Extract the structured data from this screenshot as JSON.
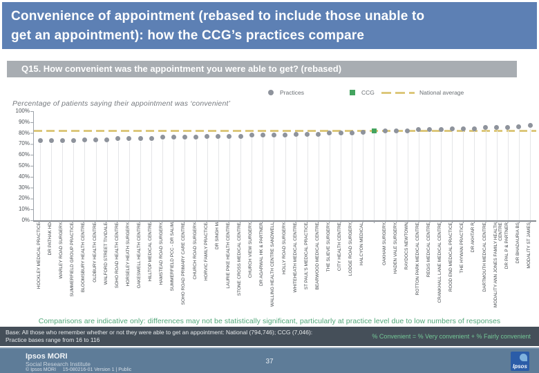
{
  "slide": {
    "title": "Convenience of appointment (rebased to include those unable to get an appointment): how the CCG’s practices compare",
    "question": "Q15. How convenient was the appointment you were able to get? (rebased)",
    "page_number": "37"
  },
  "legend": {
    "practices": "Practices",
    "ccg": "CCG",
    "national": "National average"
  },
  "chart_data": {
    "type": "scatter",
    "title": "Percentage of patients saying their appointment was ‘convenient’",
    "ylabel": "",
    "ylim": [
      0,
      100
    ],
    "y_ticks": [
      "100%",
      "90%",
      "80%",
      "70%",
      "60%",
      "50%",
      "40%",
      "30%",
      "20%",
      "10%",
      "0%"
    ],
    "grid": "column drop lines",
    "legend_position": "top-right",
    "national_average": 82,
    "ccg": {
      "label": "CCG",
      "value": 82,
      "position_index": 30
    },
    "practices": [
      {
        "name": "HOCKLEY MEDICAL PRACTICE",
        "value": 73
      },
      {
        "name": "DR PATHAK HD",
        "value": 73
      },
      {
        "name": "WARLEY ROAD SURGERY",
        "value": 73
      },
      {
        "name": "SUMMERFIELD GROUP PRACTICE",
        "value": 73
      },
      {
        "name": "BLOOMSBURY HEALTH CENTRE",
        "value": 74
      },
      {
        "name": "OLDBURY HEALTH CENTRE",
        "value": 74
      },
      {
        "name": "WALFORD STREET TIVIDALE",
        "value": 74
      },
      {
        "name": "SOHO ROAD HEALTH CENTRE",
        "value": 75
      },
      {
        "name": "HORSELEY HEATH SURGERY",
        "value": 75
      },
      {
        "name": "OAKESWELL HEALTH CENTRE",
        "value": 75
      },
      {
        "name": "HILLTOP MEDICAL CENTRE",
        "value": 75
      },
      {
        "name": "HAMSTEAD ROAD SURGERY",
        "value": 76
      },
      {
        "name": "SUMMERFIELD PCC - DR SALIM",
        "value": 76
      },
      {
        "name": "SOHO ROAD PRIMARY CARE CENTRE",
        "value": 76
      },
      {
        "name": "CHURCH ROAD SURGERY",
        "value": 76
      },
      {
        "name": "HORVIC FAMILY PRACTICE",
        "value": 77
      },
      {
        "name": "DR SINGH M",
        "value": 77
      },
      {
        "name": "LAURIE PIKE HEALTH CENTRE",
        "value": 77
      },
      {
        "name": "STONE CROSS MEDICAL CENTRE",
        "value": 77
      },
      {
        "name": "CHURCH VIEW SURGERY",
        "value": 78
      },
      {
        "name": "DR AGARWAL HK & PARTNER",
        "value": 78
      },
      {
        "name": "WALLING HEALTH CENTRE SANDWELL",
        "value": 78
      },
      {
        "name": "HOLLY ROAD SURGERY",
        "value": 78
      },
      {
        "name": "WHITEHEATH MEDICAL CENTRE",
        "value": 79
      },
      {
        "name": "ST PAUL'S MEDICAL PRACTICE",
        "value": 79
      },
      {
        "name": "BEARWOOD MEDICAL CENTRE",
        "value": 79
      },
      {
        "name": "THE SLIEVE SURGERY",
        "value": 80
      },
      {
        "name": "CITY HEALTH CENTRE",
        "value": 80
      },
      {
        "name": "LODGE ROAD SURGERY",
        "value": 80
      },
      {
        "name": "HALCYON MEDICAL",
        "value": 81
      },
      {
        "name": "OAKHAM SURGERY",
        "value": 82
      },
      {
        "name": "HADEN VALE SURGERY",
        "value": 82
      },
      {
        "name": "RAYDOCS NEWTOWN",
        "value": 82
      },
      {
        "name": "ROTTON PARK MEDICAL CENTRE",
        "value": 83
      },
      {
        "name": "REGIS MEDICAL CENTRE",
        "value": 83
      },
      {
        "name": "CRANKHALL LANE MEDICAL CENTRE",
        "value": 83
      },
      {
        "name": "ROOD END MEDICAL PRACTICE",
        "value": 84
      },
      {
        "name": "THE HYWAN PRACTICE",
        "value": 84
      },
      {
        "name": "DR AKHTAR R",
        "value": 84
      },
      {
        "name": "DARTMOUTH MEDICAL CENTRE",
        "value": 85
      },
      {
        "name": "MODALITY ANN JONES FAMILY HEALTH CENTRE",
        "value": 85
      },
      {
        "name": "DR PAL P & PARTNER",
        "value": 85
      },
      {
        "name": "DR BHADAURIA BS",
        "value": 86
      },
      {
        "name": "MODALITY ST JAMES",
        "value": 87
      }
    ]
  },
  "footnote": "Comparisons are indicative only: differences may not be statistically significant, particularly at practice level due to low numbers of responses",
  "base_bar": {
    "line1": "Base: All those who remember whether or not they were able to get an appointment: National (794,746); CCG (7,046):",
    "line2": "Practice bases range from 16 to 116",
    "right_note": "% Convenient = % Very convenient + % Fairly convenient"
  },
  "footer": {
    "brand": "Ipsos MORI",
    "brand_sub": "Social Research Institute",
    "copyright": "© Ipsos MORI",
    "reference": "15-080216-01 Version 1 | Public",
    "logo_text": "Ipsos"
  },
  "colors": {
    "title_bg": "#5d80b4",
    "question_bg": "#a8adb2",
    "practice_marker": "#8e939c",
    "ccg_marker": "#44a45f",
    "national_line": "#dcc77a",
    "note_green": "#50a678",
    "base_bar_bg": "#454f59",
    "footer_bg": "#5e7c98",
    "logo_blue": "#2b5ca8"
  }
}
